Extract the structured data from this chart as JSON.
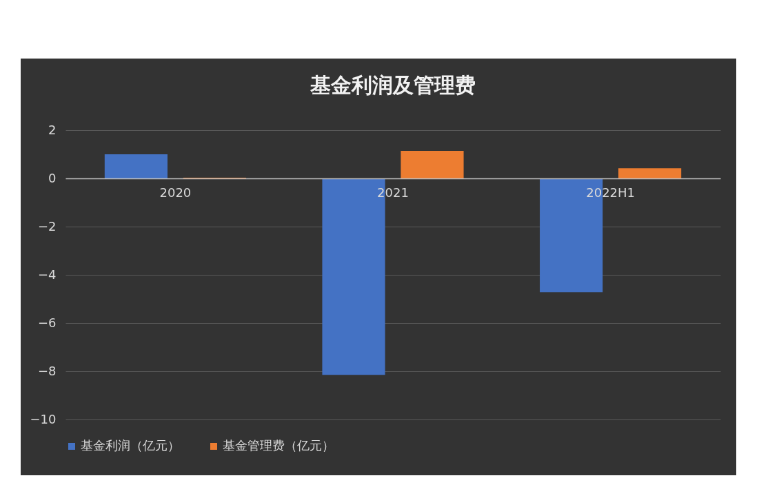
{
  "chart_data": {
    "type": "bar",
    "title": "基金利润及管理费",
    "categories": [
      "2020",
      "2021",
      "2022H1"
    ],
    "series": [
      {
        "name": "基金利润（亿元）",
        "color": "#4472c4",
        "values": [
          1.0,
          -8.15,
          -4.72
        ]
      },
      {
        "name": "基金管理费（亿元）",
        "color": "#ed7d31",
        "values": [
          0.03,
          1.14,
          0.42
        ]
      }
    ],
    "ylim": [
      -10,
      2
    ],
    "yticks": [
      -10,
      -8,
      -6,
      -4,
      -2,
      0,
      2
    ],
    "grid": "y",
    "legend": "bottom"
  }
}
